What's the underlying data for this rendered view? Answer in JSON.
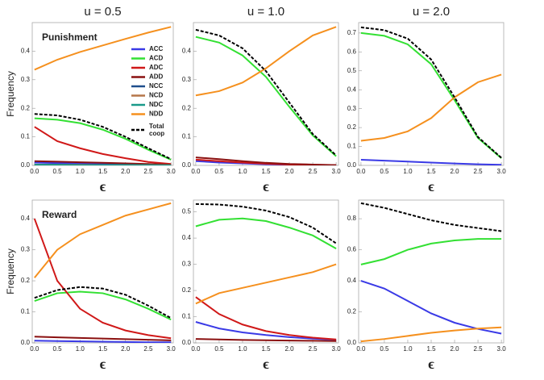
{
  "chart_data": [
    {
      "type": "line",
      "title": "u = 0.5",
      "annotation": "Punishment",
      "ylabel": "Frequency",
      "xlabel": "ϵ",
      "legend": "upper right",
      "x": [
        0,
        0.5,
        1,
        1.5,
        2,
        2.5,
        3
      ],
      "xlim": [
        -0.05,
        3.05
      ],
      "xticks": [
        {
          "value": 0,
          "label": "0.0"
        },
        0.5,
        {
          "value": 1,
          "label": "1.0"
        },
        1.5,
        {
          "value": 2,
          "label": "2.0"
        },
        2.5,
        {
          "value": 3,
          "label": "3.0"
        }
      ],
      "ylim": [
        0,
        0.5
      ],
      "yticks": [
        {
          "value": 0,
          "label": "0.0"
        },
        0.1,
        0.2,
        0.3,
        0.4
      ],
      "series": [
        {
          "name": "ACC",
          "color": "#3a3ae6",
          "values": [
            0.01,
            0.008,
            0.006,
            0.005,
            0.003,
            0.002,
            0.001
          ]
        },
        {
          "name": "ACD",
          "color": "#33e033",
          "values": [
            0.165,
            0.16,
            0.148,
            0.125,
            0.093,
            0.055,
            0.02
          ]
        },
        {
          "name": "ADC",
          "color": "#d01818",
          "values": [
            0.135,
            0.085,
            0.06,
            0.04,
            0.025,
            0.012,
            0.005
          ]
        },
        {
          "name": "ADD",
          "color": "#8a1010",
          "values": [
            0.015,
            0.013,
            0.011,
            0.009,
            0.007,
            0.005,
            0.003
          ]
        },
        {
          "name": "NCC",
          "color": "#1f4e8c",
          "values": [
            0.003,
            0.003,
            0.002,
            0.002,
            0.002,
            0.001,
            0.001
          ]
        },
        {
          "name": "NCD",
          "color": "#b5764a",
          "values": [
            0.002,
            0.002,
            0.002,
            0.001,
            0.001,
            0.001,
            0.001
          ]
        },
        {
          "name": "NDC",
          "color": "#1a9a8a",
          "values": [
            0.002,
            0.002,
            0.001,
            0.001,
            0.001,
            0.001,
            0
          ]
        },
        {
          "name": "NDD",
          "color": "#f5901e",
          "values": [
            0.335,
            0.37,
            0.397,
            0.42,
            0.443,
            0.465,
            0.485
          ]
        },
        {
          "name": "Total coop",
          "color": "#000000",
          "dash": true,
          "values": [
            0.18,
            0.175,
            0.16,
            0.135,
            0.1,
            0.06,
            0.022
          ]
        }
      ]
    },
    {
      "type": "line",
      "title": "u = 1.0",
      "xlabel": "ϵ",
      "x": [
        0,
        0.5,
        1,
        1.5,
        2,
        2.5,
        3
      ],
      "xlim": [
        -0.05,
        3.05
      ],
      "xticks": [
        {
          "value": 0,
          "label": "0.0"
        },
        0.5,
        {
          "value": 1,
          "label": "1.0"
        },
        1.5,
        {
          "value": 2,
          "label": "2.0"
        },
        2.5,
        {
          "value": 3,
          "label": "3.0"
        }
      ],
      "ylim": [
        0,
        0.5
      ],
      "yticks": [
        {
          "value": 0,
          "label": "0.0"
        },
        0.1,
        0.2,
        0.3,
        0.4
      ],
      "series": [
        {
          "name": "ACC",
          "color": "#3a3ae6",
          "values": [
            0.015,
            0.01,
            0.007,
            0.004,
            0.002,
            0.001,
            0
          ]
        },
        {
          "name": "ACD",
          "color": "#33e033",
          "values": [
            0.45,
            0.43,
            0.385,
            0.31,
            0.205,
            0.105,
            0.032
          ]
        },
        {
          "name": "ADC",
          "color": "#d01818",
          "values": [
            0.02,
            0.015,
            0.01,
            0.006,
            0.003,
            0.002,
            0.001
          ]
        },
        {
          "name": "ADD",
          "color": "#8a1010",
          "values": [
            0.028,
            0.022,
            0.015,
            0.009,
            0.005,
            0.003,
            0.001
          ]
        },
        {
          "name": "NDD",
          "color": "#f5901e",
          "values": [
            0.245,
            0.26,
            0.29,
            0.34,
            0.4,
            0.455,
            0.485
          ]
        },
        {
          "name": "Total coop",
          "color": "#000000",
          "dash": true,
          "values": [
            0.475,
            0.455,
            0.41,
            0.33,
            0.22,
            0.11,
            0.035
          ]
        }
      ]
    },
    {
      "type": "line",
      "title": "u = 2.0",
      "xlabel": "ϵ",
      "x": [
        0,
        0.5,
        1,
        1.5,
        2,
        2.5,
        3
      ],
      "xlim": [
        -0.05,
        3.05
      ],
      "xticks": [
        {
          "value": 0,
          "label": "0.0"
        },
        0.5,
        {
          "value": 1,
          "label": "1.0"
        },
        1.5,
        {
          "value": 2,
          "label": "2.0"
        },
        2.5,
        {
          "value": 3,
          "label": "3.0"
        }
      ],
      "ylim": [
        0,
        0.755
      ],
      "yticks": [
        {
          "value": 0,
          "label": "0.0"
        },
        0.1,
        0.2,
        0.3,
        0.4,
        0.5,
        0.6,
        0.7
      ],
      "series": [
        {
          "name": "ACC",
          "color": "#3a3ae6",
          "values": [
            0.03,
            0.025,
            0.02,
            0.015,
            0.01,
            0.006,
            0.003
          ]
        },
        {
          "name": "ACD",
          "color": "#33e033",
          "values": [
            0.7,
            0.685,
            0.64,
            0.535,
            0.345,
            0.145,
            0.038
          ]
        },
        {
          "name": "NDD",
          "color": "#f5901e",
          "values": [
            0.13,
            0.145,
            0.18,
            0.25,
            0.36,
            0.44,
            0.48
          ]
        },
        {
          "name": "Total coop",
          "color": "#000000",
          "dash": true,
          "values": [
            0.73,
            0.715,
            0.67,
            0.56,
            0.36,
            0.15,
            0.04
          ]
        }
      ]
    },
    {
      "type": "line",
      "annotation": "Reward",
      "ylabel": "Frequency",
      "xlabel": "ϵ",
      "x": [
        0,
        0.5,
        1,
        1.5,
        2,
        2.5,
        3
      ],
      "xlim": [
        -0.05,
        3.05
      ],
      "xticks": [
        {
          "value": 0,
          "label": "0.0"
        },
        0.5,
        {
          "value": 1,
          "label": "1.0"
        },
        1.5,
        {
          "value": 2,
          "label": "2.0"
        },
        2.5,
        {
          "value": 3,
          "label": "3.0"
        }
      ],
      "ylim": [
        0,
        0.46
      ],
      "yticks": [
        {
          "value": 0,
          "label": "0.0"
        },
        0.1,
        0.2,
        0.3,
        0.4
      ],
      "series": [
        {
          "name": "ACC",
          "color": "#3a3ae6",
          "values": [
            0.007,
            0.006,
            0.005,
            0.004,
            0.003,
            0.002,
            0.002
          ]
        },
        {
          "name": "ACD",
          "color": "#33e033",
          "values": [
            0.135,
            0.16,
            0.165,
            0.16,
            0.14,
            0.11,
            0.075
          ]
        },
        {
          "name": "ADC",
          "color": "#d01818",
          "values": [
            0.4,
            0.2,
            0.11,
            0.065,
            0.04,
            0.025,
            0.015
          ]
        },
        {
          "name": "ADD",
          "color": "#8a1010",
          "values": [
            0.02,
            0.018,
            0.016,
            0.014,
            0.012,
            0.01,
            0.008
          ]
        },
        {
          "name": "NDD",
          "color": "#f5901e",
          "values": [
            0.21,
            0.3,
            0.35,
            0.38,
            0.41,
            0.43,
            0.45
          ]
        },
        {
          "name": "Total coop",
          "color": "#000000",
          "dash": true,
          "values": [
            0.145,
            0.17,
            0.18,
            0.175,
            0.155,
            0.12,
            0.08
          ]
        }
      ]
    },
    {
      "type": "line",
      "xlabel": "ϵ",
      "x": [
        0,
        0.5,
        1,
        1.5,
        2,
        2.5,
        3
      ],
      "xlim": [
        -0.05,
        3.05
      ],
      "xticks": [
        {
          "value": 0,
          "label": "0.0"
        },
        0.5,
        {
          "value": 1,
          "label": "1.0"
        },
        1.5,
        {
          "value": 2,
          "label": "2.0"
        },
        2.5,
        {
          "value": 3,
          "label": "3.0"
        }
      ],
      "ylim": [
        0,
        0.545
      ],
      "yticks": [
        {
          "value": 0,
          "label": "0.0"
        },
        0.1,
        0.2,
        0.3,
        0.4,
        0.5
      ],
      "series": [
        {
          "name": "ACC",
          "color": "#3a3ae6",
          "values": [
            0.08,
            0.055,
            0.04,
            0.03,
            0.022,
            0.016,
            0.012
          ]
        },
        {
          "name": "ACD",
          "color": "#33e033",
          "values": [
            0.445,
            0.47,
            0.475,
            0.465,
            0.44,
            0.41,
            0.36
          ]
        },
        {
          "name": "ADC",
          "color": "#d01818",
          "values": [
            0.175,
            0.11,
            0.07,
            0.045,
            0.03,
            0.02,
            0.013
          ]
        },
        {
          "name": "ADD",
          "color": "#8a1010",
          "values": [
            0.015,
            0.013,
            0.011,
            0.01,
            0.009,
            0.008,
            0.007
          ]
        },
        {
          "name": "NDD",
          "color": "#f5901e",
          "values": [
            0.15,
            0.19,
            0.21,
            0.23,
            0.25,
            0.27,
            0.3
          ]
        },
        {
          "name": "Total coop",
          "color": "#000000",
          "dash": true,
          "values": [
            0.53,
            0.528,
            0.52,
            0.505,
            0.48,
            0.44,
            0.38
          ]
        }
      ]
    },
    {
      "type": "line",
      "xlabel": "ϵ",
      "x": [
        0,
        0.5,
        1,
        1.5,
        2,
        2.5,
        3
      ],
      "xlim": [
        -0.05,
        3.05
      ],
      "xticks": [
        {
          "value": 0,
          "label": "0.0"
        },
        0.5,
        {
          "value": 1,
          "label": "1.0"
        },
        1.5,
        {
          "value": 2,
          "label": "2.0"
        },
        2.5,
        {
          "value": 3,
          "label": "3.0"
        }
      ],
      "ylim": [
        0,
        0.92
      ],
      "yticks": [
        {
          "value": 0,
          "label": "0.0"
        },
        0.2,
        0.4,
        0.6,
        0.8
      ],
      "series": [
        {
          "name": "ACC",
          "color": "#3a3ae6",
          "values": [
            0.4,
            0.35,
            0.27,
            0.19,
            0.13,
            0.09,
            0.06
          ]
        },
        {
          "name": "ACD",
          "color": "#33e033",
          "values": [
            0.505,
            0.54,
            0.6,
            0.64,
            0.66,
            0.67,
            0.67
          ]
        },
        {
          "name": "NDD",
          "color": "#f5901e",
          "values": [
            0.01,
            0.025,
            0.045,
            0.065,
            0.08,
            0.092,
            0.1
          ]
        },
        {
          "name": "Total coop",
          "color": "#000000",
          "dash": true,
          "values": [
            0.9,
            0.87,
            0.83,
            0.79,
            0.76,
            0.74,
            0.72
          ]
        }
      ]
    }
  ]
}
